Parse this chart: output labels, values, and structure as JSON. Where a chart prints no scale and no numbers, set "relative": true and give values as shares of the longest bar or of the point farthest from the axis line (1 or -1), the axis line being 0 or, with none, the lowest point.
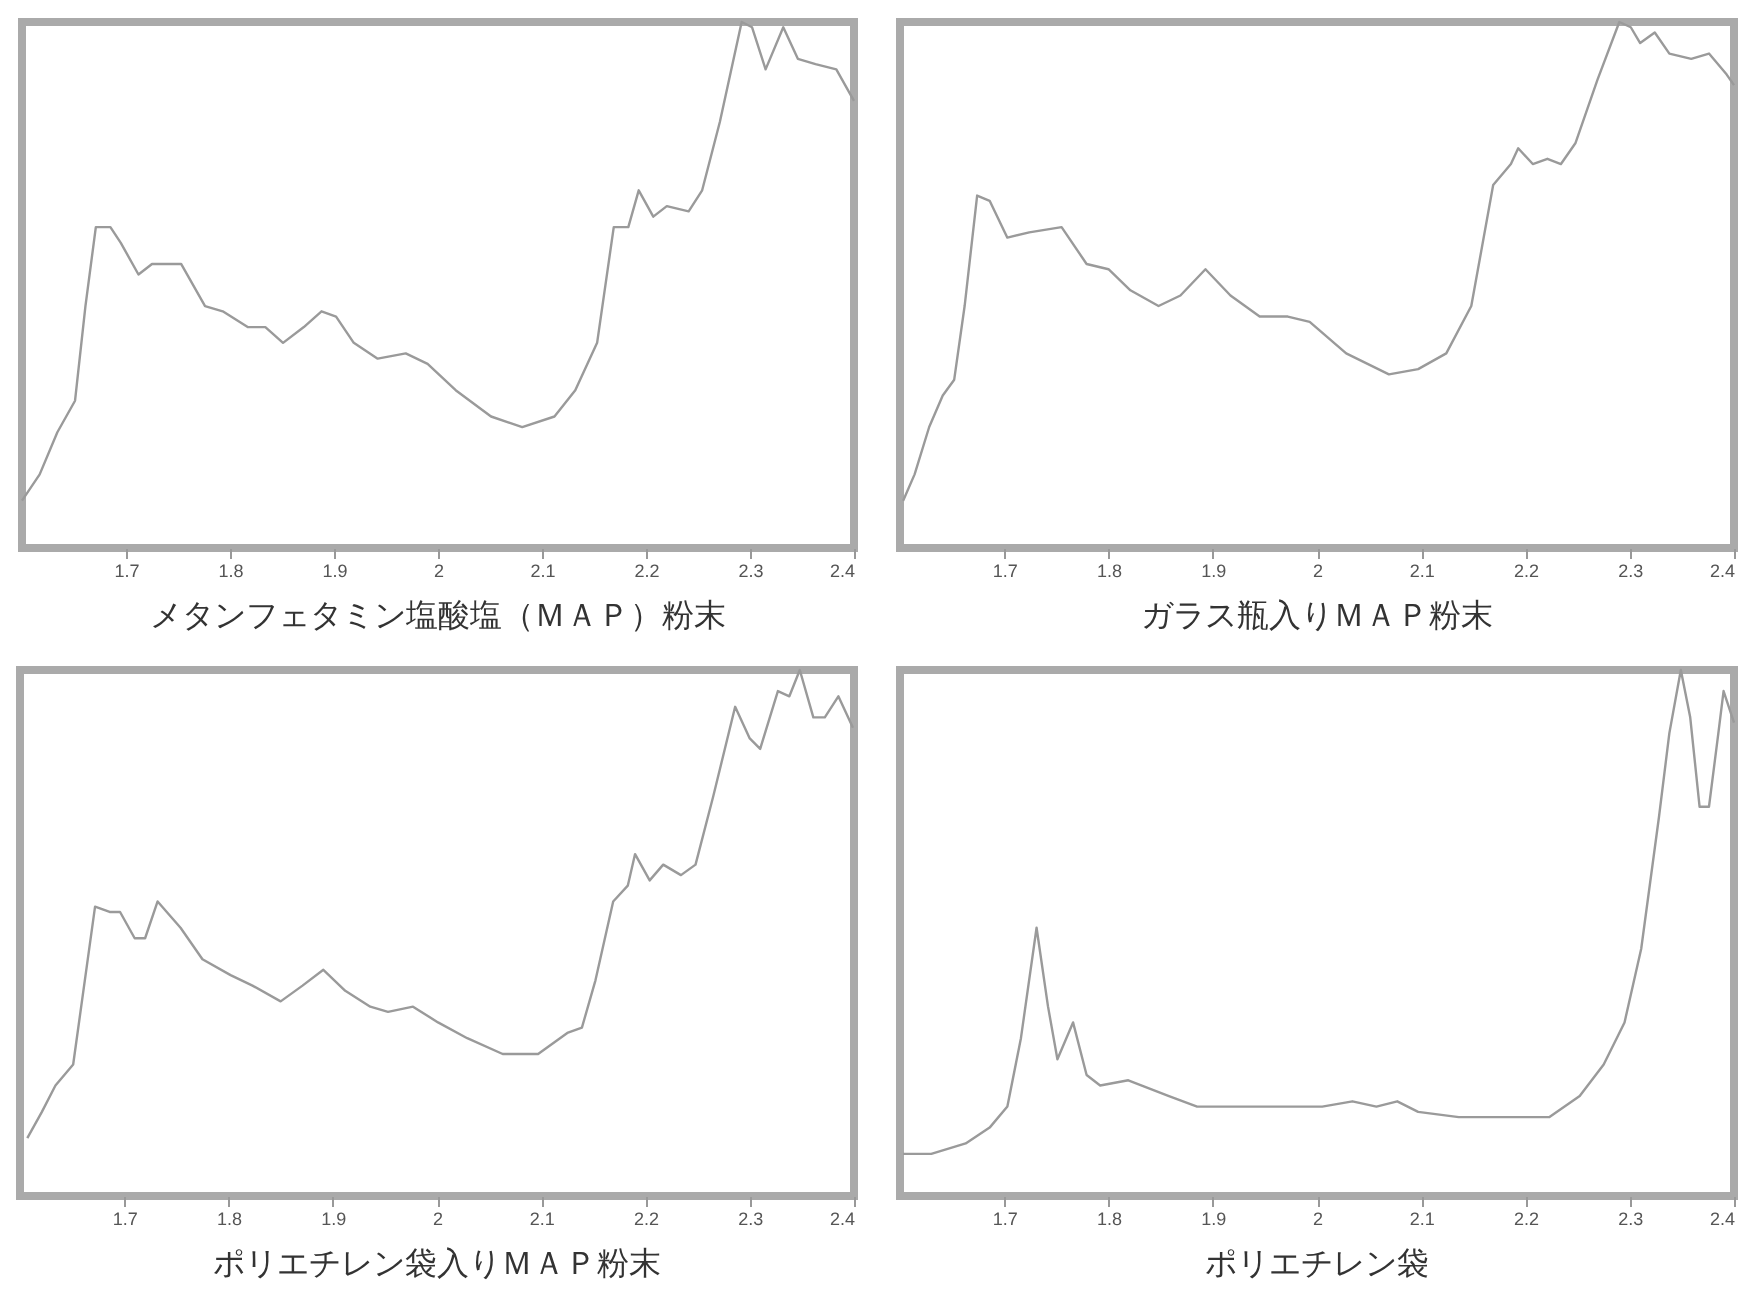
{
  "chart_data": [
    {
      "type": "line",
      "title": "メタンフェタミン塩酸塩（ＭＡＰ）粉末",
      "relative": true,
      "color": "#9a9a9a",
      "xlim": [
        1.6,
        2.4
      ],
      "xticks": [
        1.7,
        1.8,
        1.9,
        2,
        2.1,
        2.2,
        2.3,
        2.4
      ],
      "grid": false,
      "x": [
        1.6,
        1.617,
        1.634,
        1.651,
        1.661,
        1.671,
        1.685,
        1.695,
        1.712,
        1.725,
        1.753,
        1.776,
        1.793,
        1.817,
        1.834,
        1.851,
        1.871,
        1.888,
        1.902,
        1.919,
        1.942,
        1.969,
        1.99,
        2.017,
        2.051,
        2.081,
        2.112,
        2.132,
        2.153,
        2.169,
        2.183,
        2.193,
        2.207,
        2.22,
        2.241,
        2.254,
        2.271,
        2.292,
        2.302,
        2.315,
        2.332,
        2.346,
        2.363,
        2.383,
        2.4
      ],
      "values": [
        0.09,
        0.14,
        0.22,
        0.28,
        0.46,
        0.61,
        0.61,
        0.58,
        0.52,
        0.54,
        0.54,
        0.46,
        0.45,
        0.42,
        0.42,
        0.39,
        0.42,
        0.45,
        0.44,
        0.39,
        0.36,
        0.37,
        0.35,
        0.3,
        0.25,
        0.23,
        0.25,
        0.3,
        0.39,
        0.61,
        0.61,
        0.68,
        0.63,
        0.65,
        0.64,
        0.68,
        0.81,
        1.0,
        0.99,
        0.91,
        0.99,
        0.93,
        0.92,
        0.91,
        0.85
      ]
    },
    {
      "type": "line",
      "title": "ガラス瓶入りＭＡＰ粉末",
      "relative": true,
      "color": "#9a9a9a",
      "xlim": [
        1.6,
        2.4
      ],
      "xticks": [
        1.7,
        1.8,
        1.9,
        2,
        2.1,
        2.2,
        2.3,
        2.4
      ],
      "grid": false,
      "x": [
        1.603,
        1.614,
        1.628,
        1.641,
        1.652,
        1.662,
        1.674,
        1.686,
        1.703,
        1.724,
        1.755,
        1.779,
        1.8,
        1.821,
        1.848,
        1.869,
        1.893,
        1.917,
        1.945,
        1.972,
        1.993,
        2.028,
        2.069,
        2.097,
        2.124,
        2.148,
        2.169,
        2.186,
        2.193,
        2.207,
        2.221,
        2.234,
        2.248,
        2.269,
        2.29,
        2.301,
        2.31,
        2.324,
        2.338,
        2.359,
        2.376,
        2.393,
        2.4
      ],
      "values": [
        0.09,
        0.14,
        0.23,
        0.29,
        0.32,
        0.46,
        0.67,
        0.66,
        0.59,
        0.6,
        0.61,
        0.54,
        0.53,
        0.49,
        0.46,
        0.48,
        0.53,
        0.48,
        0.44,
        0.44,
        0.43,
        0.37,
        0.33,
        0.34,
        0.37,
        0.46,
        0.69,
        0.73,
        0.76,
        0.73,
        0.74,
        0.73,
        0.77,
        0.89,
        1.0,
        0.99,
        0.96,
        0.98,
        0.94,
        0.93,
        0.94,
        0.9,
        0.88
      ]
    },
    {
      "type": "line",
      "title": "ポリエチレン袋入りＭＡＰ粉末",
      "relative": true,
      "color": "#9a9a9a",
      "xlim": [
        1.6,
        2.4
      ],
      "xticks": [
        1.7,
        1.8,
        1.9,
        2,
        2.1,
        2.2,
        2.3,
        2.4
      ],
      "grid": false,
      "x": [
        1.607,
        1.621,
        1.634,
        1.651,
        1.658,
        1.672,
        1.686,
        1.696,
        1.71,
        1.72,
        1.732,
        1.754,
        1.775,
        1.802,
        1.823,
        1.85,
        1.871,
        1.891,
        1.912,
        1.936,
        1.953,
        1.977,
        2.001,
        2.029,
        2.063,
        2.097,
        2.125,
        2.139,
        2.152,
        2.169,
        2.183,
        2.19,
        2.204,
        2.217,
        2.234,
        2.248,
        2.265,
        2.286,
        2.3,
        2.31,
        2.327,
        2.338,
        2.348,
        2.361,
        2.372,
        2.385,
        2.399
      ],
      "values": [
        0.11,
        0.16,
        0.21,
        0.25,
        0.35,
        0.55,
        0.54,
        0.54,
        0.49,
        0.49,
        0.56,
        0.51,
        0.45,
        0.42,
        0.4,
        0.37,
        0.4,
        0.43,
        0.39,
        0.36,
        0.35,
        0.36,
        0.33,
        0.3,
        0.27,
        0.27,
        0.31,
        0.32,
        0.41,
        0.56,
        0.59,
        0.65,
        0.6,
        0.63,
        0.61,
        0.63,
        0.76,
        0.93,
        0.87,
        0.85,
        0.96,
        0.95,
        1.0,
        0.91,
        0.91,
        0.95,
        0.89
      ]
    },
    {
      "type": "line",
      "title": "ポリエチレン袋",
      "relative": true,
      "color": "#9a9a9a",
      "xlim": [
        1.6,
        2.4
      ],
      "xticks": [
        1.7,
        1.8,
        1.9,
        2,
        2.1,
        2.2,
        2.3,
        2.4
      ],
      "grid": false,
      "x": [
        1.603,
        1.63,
        1.663,
        1.686,
        1.703,
        1.716,
        1.731,
        1.742,
        1.751,
        1.766,
        1.779,
        1.792,
        1.819,
        1.832,
        1.858,
        1.885,
        1.911,
        1.938,
        1.971,
        2.005,
        2.034,
        2.057,
        2.077,
        2.097,
        2.136,
        2.176,
        2.223,
        2.252,
        2.275,
        2.295,
        2.311,
        2.328,
        2.338,
        2.349,
        2.358,
        2.367,
        2.376,
        2.385,
        2.39,
        2.4
      ],
      "values": [
        0.08,
        0.08,
        0.1,
        0.13,
        0.17,
        0.3,
        0.51,
        0.36,
        0.26,
        0.33,
        0.23,
        0.21,
        0.22,
        0.21,
        0.19,
        0.17,
        0.17,
        0.17,
        0.17,
        0.17,
        0.18,
        0.17,
        0.18,
        0.16,
        0.15,
        0.15,
        0.15,
        0.19,
        0.25,
        0.33,
        0.47,
        0.72,
        0.88,
        1.0,
        0.91,
        0.74,
        0.74,
        0.88,
        0.96,
        0.9
      ]
    }
  ]
}
